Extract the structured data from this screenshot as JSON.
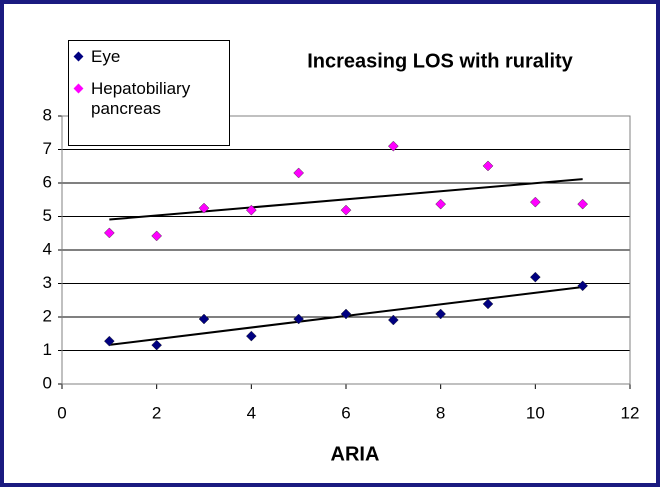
{
  "chart_data": {
    "type": "scatter",
    "title": "Increasing LOS with rurality",
    "x_label": "ARIA",
    "series": [
      {
        "name": "Eye",
        "color": "#000080",
        "x": [
          1,
          2,
          3,
          4,
          5,
          6,
          7,
          8,
          9,
          10,
          11
        ],
        "values": [
          1.28,
          1.16,
          1.94,
          1.43,
          1.94,
          2.09,
          1.91,
          2.09,
          2.39,
          3.19,
          2.93
        ]
      },
      {
        "name": "Hepatobiliary pancreas",
        "color": "#ff00ff",
        "x": [
          1,
          2,
          3,
          4,
          5,
          6,
          7,
          8,
          9,
          10,
          11
        ],
        "values": [
          4.51,
          4.42,
          5.25,
          5.19,
          6.3,
          5.19,
          7.1,
          5.37,
          6.51,
          5.43,
          5.37
        ]
      }
    ],
    "trendline": true,
    "grid": true,
    "xlim": [
      0,
      12
    ],
    "xticks": [
      0,
      2,
      4,
      6,
      8,
      10,
      12
    ],
    "ylim": [
      0,
      8
    ],
    "yticks": [
      0,
      1,
      2,
      3,
      4,
      5,
      6,
      7,
      8
    ]
  }
}
